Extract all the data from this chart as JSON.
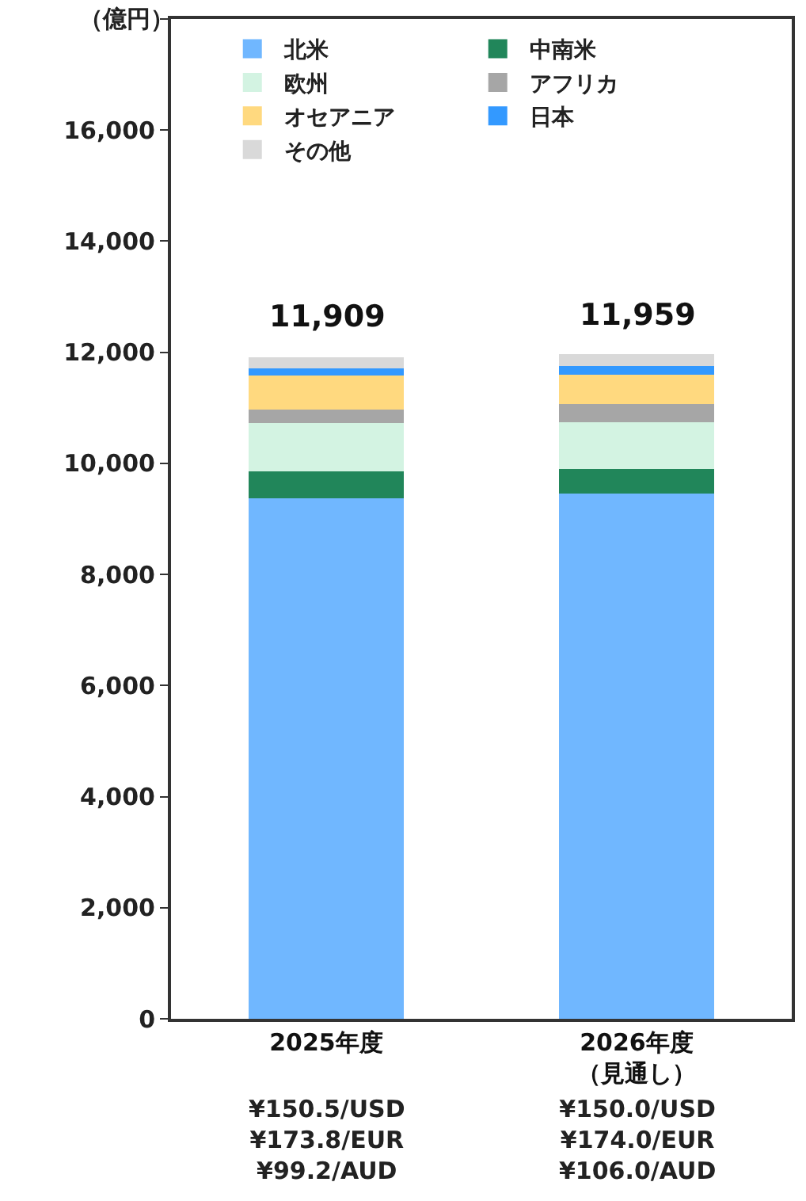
{
  "chart_data": {
    "type": "bar",
    "stacked": true,
    "ylabel": "（億円）",
    "categories": [
      "2025年度",
      "2026年度（見通し）"
    ],
    "series": [
      {
        "name": "北米",
        "color": "#70b7ff",
        "values": [
          9370,
          9450
        ]
      },
      {
        "name": "中南米",
        "color": "#21865a",
        "values": [
          490,
          450
        ]
      },
      {
        "name": "欧州",
        "color": "#d3f3e2",
        "values": [
          870,
          840
        ]
      },
      {
        "name": "アフリカ",
        "color": "#a6a6a6",
        "values": [
          240,
          330
        ]
      },
      {
        "name": "オセアニア",
        "color": "#ffd97f",
        "values": [
          610,
          520
        ]
      },
      {
        "name": "日本",
        "color": "#3399ff",
        "values": [
          130,
          170
        ]
      },
      {
        "name": "その他",
        "color": "#d9d9d9",
        "values": [
          200,
          200
        ]
      }
    ],
    "totals": [
      "11,909",
      "11,959"
    ],
    "annotations": [
      "¥150.5/USD\n¥173.8/EUR\n¥99.2/AUD",
      "¥150.0/USD\n¥174.0/EUR\n¥106.0/AUD"
    ],
    "ylim": [
      0,
      18000
    ],
    "yticks": [
      {
        "value": 0,
        "label": "0"
      },
      {
        "value": 2000,
        "label": "2,000"
      },
      {
        "value": 4000,
        "label": "4,000"
      },
      {
        "value": 6000,
        "label": "6,000"
      },
      {
        "value": 8000,
        "label": "8,000"
      },
      {
        "value": 10000,
        "label": "10,000"
      },
      {
        "value": 12000,
        "label": "12,000"
      },
      {
        "value": 14000,
        "label": "14,000"
      },
      {
        "value": 16000,
        "label": "16,000"
      },
      {
        "value": 18000,
        "label": null
      }
    ],
    "grid": false,
    "legend": "top"
  }
}
